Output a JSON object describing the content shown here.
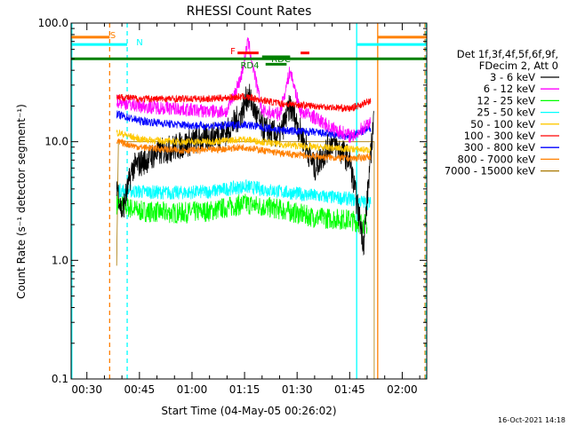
{
  "chart_data": {
    "type": "line",
    "title": "RHESSI Count Rates",
    "xlabel": "Start Time (04-May-05 00:26:02)",
    "ylabel": "Count Rate (s⁻¹ detector segment⁻¹)",
    "yscale": "log",
    "ylim": [
      0.1,
      100
    ],
    "xlim_minutes": [
      25.5,
      127
    ],
    "yticks": [
      0.1,
      1,
      10,
      100
    ],
    "ytick_labels": [
      "0.1",
      "1.0",
      "10.0",
      "100.0"
    ],
    "xticks_minutes": [
      30,
      45,
      60,
      75,
      90,
      105,
      120
    ],
    "xtick_labels": [
      "00:30",
      "00:45",
      "01:00",
      "01:15",
      "01:30",
      "01:45",
      "02:00"
    ],
    "legend_header": [
      "Det 1f,3f,4f,5f,6f,9f,",
      "FDecim 2, Att 0"
    ],
    "legend_placement": "right, outside plot",
    "footer_timestamp": "16-Oct-2021 14:18",
    "series": [
      {
        "name": "3 - 6 keV",
        "color": "#000000",
        "x": [
          38.5,
          40,
          43,
          50,
          60,
          70,
          74,
          76,
          80,
          85,
          88,
          95,
          100,
          105,
          109,
          112
        ],
        "y": [
          4.5,
          2.5,
          6,
          8,
          10,
          12,
          17,
          25,
          13,
          11,
          20,
          6,
          10,
          7,
          1.4,
          18
        ]
      },
      {
        "name": "6 - 12 keV",
        "color": "#ff00ff",
        "x": [
          38.5,
          45,
          55,
          65,
          70,
          74,
          76,
          78,
          80,
          85,
          88,
          91,
          95,
          100,
          106,
          111
        ],
        "y": [
          22,
          20,
          19,
          18,
          18,
          35,
          70,
          35,
          18,
          17,
          40,
          18,
          16,
          13,
          11,
          15
        ]
      },
      {
        "name": "12 - 25 keV",
        "color": "#00ff00",
        "x": [
          38.5,
          45,
          55,
          65,
          75,
          85,
          95,
          105,
          110
        ],
        "y": [
          3.0,
          2.6,
          2.5,
          2.6,
          3.0,
          2.7,
          2.3,
          2.2,
          2.0
        ]
      },
      {
        "name": "25 - 50 keV",
        "color": "#00ffff",
        "x": [
          38.5,
          45,
          55,
          65,
          75,
          85,
          95,
          105,
          111
        ],
        "y": [
          3.9,
          3.8,
          3.7,
          3.8,
          4.2,
          3.8,
          3.5,
          3.3,
          3.0
        ]
      },
      {
        "name": "50 - 100 keV",
        "color": "#ffc800",
        "x": [
          38.5,
          45,
          55,
          65,
          75,
          85,
          95,
          105,
          111
        ],
        "y": [
          12,
          10.5,
          10,
          10,
          10.5,
          9.5,
          9,
          8.7,
          8.5
        ]
      },
      {
        "name": "100 - 300 keV",
        "color": "#ff0000",
        "x": [
          38.5,
          45,
          55,
          65,
          75,
          85,
          95,
          105,
          111
        ],
        "y": [
          24,
          23,
          23,
          23,
          24,
          21,
          20,
          19,
          22
        ]
      },
      {
        "name": "300 - 800 keV",
        "color": "#0000ff",
        "x": [
          38.5,
          45,
          55,
          65,
          75,
          85,
          95,
          105,
          111
        ],
        "y": [
          17,
          15,
          14,
          13.5,
          14,
          12.5,
          12,
          11,
          13
        ]
      },
      {
        "name": "800 - 7000 keV",
        "color": "#ff8000",
        "x": [
          38.5,
          45,
          55,
          65,
          75,
          85,
          95,
          105,
          111
        ],
        "y": [
          10,
          9,
          8.5,
          8.5,
          9,
          8,
          7.5,
          7.2,
          7.5
        ]
      },
      {
        "name": "7000 - 15000 keV",
        "color": "#a87800",
        "x": [
          38.5,
          39,
          112
        ],
        "y": [
          0.9,
          10,
          10
        ]
      }
    ],
    "attenuator_flag": {
      "label": "S",
      "color": "#ff8000",
      "segments_minutes": [
        [
          25.5,
          36.5
        ],
        [
          113,
          127
        ]
      ],
      "level": 76
    },
    "night_flag": {
      "label": "N",
      "color": "#00ffff",
      "segments_minutes": [
        [
          25.5,
          41.5
        ],
        [
          107,
          127
        ]
      ],
      "level": 66
    },
    "saa_flag": {
      "label": "",
      "color": "#008000",
      "segments_minutes": [
        [
          25.5,
          127
        ]
      ],
      "level": 50
    },
    "flare_flag": {
      "label": "F",
      "color": "#ff0000",
      "segments_minutes": [
        [
          73,
          79
        ],
        [
          91,
          93.5
        ]
      ],
      "level": 56
    },
    "decim_flag": {
      "label": "RDC",
      "color": "#008000",
      "segments_minutes": [
        [
          80,
          88
        ]
      ],
      "level": 52
    },
    "decim4_flag": {
      "label": "RD4",
      "color": "#008000",
      "segments_minutes": [
        [
          81,
          87
        ]
      ],
      "level": 45
    },
    "vertical_markers": [
      {
        "minute": 25.7,
        "color": "#00ffff",
        "style": "solid"
      },
      {
        "minute": 36.5,
        "color": "#ff8000",
        "style": "dashed"
      },
      {
        "minute": 41.5,
        "color": "#00ffff",
        "style": "dashed"
      },
      {
        "minute": 107,
        "color": "#00ffff",
        "style": "solid"
      },
      {
        "minute": 113,
        "color": "#ff8000",
        "style": "solid"
      },
      {
        "minute": 126.5,
        "color": "#ff8000",
        "style": "dashed"
      },
      {
        "minute": 126.8,
        "color": "#00ffff",
        "style": "dashed"
      }
    ]
  }
}
